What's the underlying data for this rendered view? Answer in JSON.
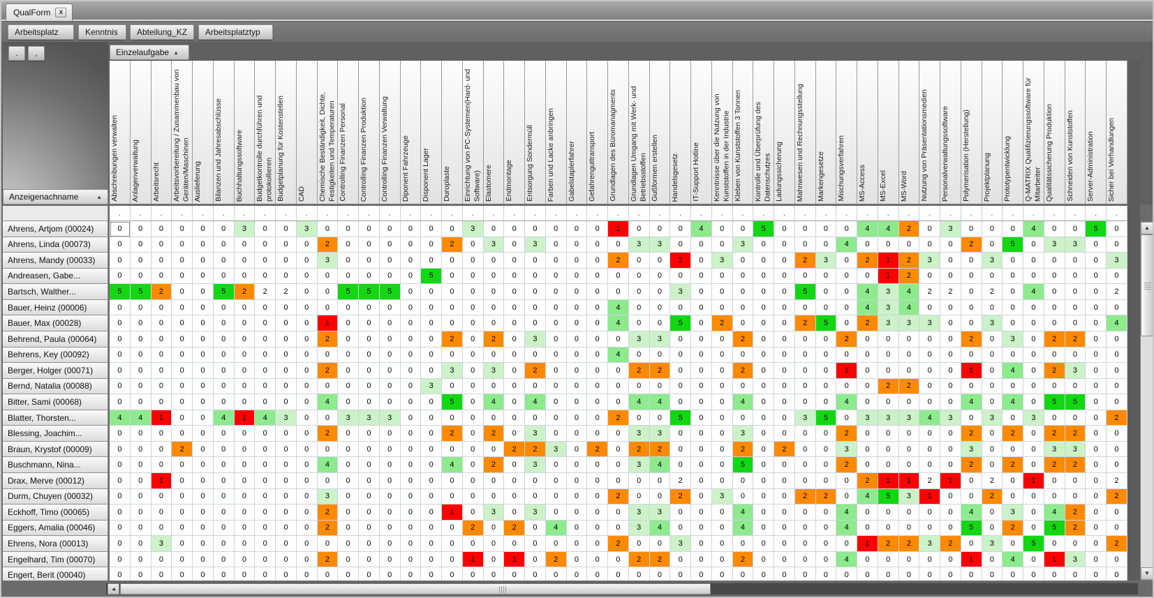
{
  "window": {
    "tab_title": "QualForm",
    "close_label": "x"
  },
  "filter_chips": [
    {
      "label": "Arbeitsplatz"
    },
    {
      "label": "Kenntnis"
    },
    {
      "label": "Abteilung_KZ"
    },
    {
      "label": "Arbeitsplatztyp"
    }
  ],
  "mini_buttons": {
    "dot": ".",
    "comma": ","
  },
  "group_header": {
    "label": "Einzelaufgabe",
    "sort_indicator": "▲"
  },
  "row_header": {
    "label": "Anzeigenachname",
    "sort_indicator": "▲"
  },
  "filter_dot": ".",
  "scrollbars": {
    "up": "▲",
    "down": "▼",
    "left": "◄"
  },
  "value_colors": {
    "0": "#ffffff",
    "1": "#fe0000",
    "2": "#ff8a00",
    "3": "#ccf2c8",
    "4": "#8deb8d",
    "5": "#12d812"
  },
  "columns": [
    "Abschreibungen verwalten",
    "Anlagenverwaltung",
    "Arbeitsrecht",
    "Arbeitsvorbereitung / Zusammenbau von Geräten/Maschinen",
    "Auslieferung",
    "Bilanzen und Jahresabschlüsse",
    "Buchhaltungssoftware",
    "Budgetkontrolle durchführen und protokollieren",
    "Budgetplanung für Kostenstellen",
    "CAD",
    "Chemische Beständigkeit, Dichte, Festigkeiten und Temperaturen",
    "Controlling Finanzen Personal",
    "Controlling Finanzen Produktion",
    "Controlling Finanzen Verwaltung",
    "Diponent Fahrzeuge",
    "Disponent Lager",
    "Duroplaste",
    "Einrichtung von PC-Systemen(Hard- und Software)",
    "Elastomere",
    "Endmontage",
    "Entsorgung Sondermüll",
    "Farben und Lacke anbringen",
    "Gabelstaplerfahrer",
    "Gefahrenguttransport",
    "Grundlagen des Büromanagments",
    "Grundlagen Umgang mit Werk- und Betriebsstoffen",
    "Gußformen erstellen",
    "Handelsgesetz",
    "IT-Support Hotline",
    "Kenntnisse über die Nutzung von Kunststoffen in der Industrie",
    "Kleben von Kunststoffen 3 Tonnen",
    "Kontrolle und Überprüfung des Datenschutzes",
    "Ladungssicherung",
    "Mahnwesen und Rechnungsstellung",
    "Markengesetze",
    "Mischungsverfahren",
    "MS-Access",
    "MS-Excel",
    "MS-Word",
    "Nutzung von Präsentationsmedien",
    "Personalverwaltungssoftware",
    "Polymerisation (Herstellung)",
    "Projektplanung",
    "Prototypentwicklung",
    "Q-MATRIX Qualifizierungssoftware für Mitarbeiter",
    "Qualitätssicherung Produktion",
    "Schneiden von Kunststoffen",
    "Server-Administration",
    "Sicher bei Verhandlungen"
  ],
  "rows": [
    {
      "name": "Ahrens, Artjom (00024)",
      "values": [
        0,
        0,
        0,
        0,
        0,
        0,
        3,
        0,
        0,
        3,
        0,
        0,
        0,
        0,
        0,
        0,
        0,
        3,
        0,
        0,
        0,
        0,
        0,
        0,
        1,
        0,
        0,
        0,
        4,
        0,
        0,
        5,
        0,
        0,
        0,
        0,
        4,
        4,
        2,
        0,
        3,
        0,
        0,
        0,
        4,
        0,
        0,
        5,
        0
      ],
      "plain": []
    },
    {
      "name": "Ahrens, Linda (00073)",
      "values": [
        0,
        0,
        0,
        0,
        0,
        0,
        0,
        0,
        0,
        0,
        2,
        0,
        0,
        0,
        0,
        0,
        2,
        0,
        3,
        0,
        3,
        0,
        0,
        0,
        0,
        3,
        3,
        0,
        0,
        0,
        3,
        0,
        0,
        0,
        0,
        4,
        0,
        0,
        0,
        0,
        0,
        2,
        0,
        5,
        0,
        3,
        3,
        0,
        0
      ],
      "plain": []
    },
    {
      "name": "Ahrens, Mandy (00033)",
      "values": [
        0,
        0,
        0,
        0,
        0,
        0,
        0,
        0,
        0,
        0,
        3,
        0,
        0,
        0,
        0,
        0,
        0,
        0,
        0,
        0,
        0,
        0,
        0,
        0,
        2,
        0,
        0,
        1,
        0,
        3,
        0,
        0,
        0,
        2,
        3,
        0,
        2,
        1,
        2,
        3,
        0,
        0,
        3,
        0,
        0,
        0,
        0,
        0,
        3
      ],
      "plain": []
    },
    {
      "name": "Andreasen, Gabe...",
      "values": [
        0,
        0,
        0,
        0,
        0,
        0,
        0,
        0,
        0,
        0,
        0,
        0,
        0,
        0,
        0,
        5,
        0,
        0,
        0,
        0,
        0,
        0,
        0,
        0,
        0,
        0,
        0,
        0,
        0,
        0,
        0,
        0,
        0,
        0,
        0,
        0,
        0,
        1,
        2,
        0,
        0,
        0,
        0,
        0,
        0,
        0,
        0,
        0,
        0
      ],
      "plain": []
    },
    {
      "name": "Bartsch, Walther...",
      "values": [
        5,
        5,
        2,
        0,
        0,
        5,
        2,
        2,
        2,
        0,
        0,
        5,
        5,
        5,
        0,
        0,
        0,
        0,
        0,
        0,
        0,
        0,
        0,
        0,
        0,
        0,
        0,
        3,
        0,
        0,
        0,
        0,
        0,
        5,
        0,
        0,
        4,
        3,
        4,
        2,
        2,
        0,
        2,
        0,
        4,
        0,
        0,
        0,
        2
      ],
      "plain": [
        8,
        9,
        40,
        41,
        43,
        49
      ]
    },
    {
      "name": "Bauer, Heinz (00006)",
      "values": [
        0,
        0,
        0,
        0,
        0,
        0,
        0,
        0,
        0,
        0,
        0,
        0,
        0,
        0,
        0,
        0,
        0,
        0,
        0,
        0,
        0,
        0,
        0,
        0,
        4,
        0,
        0,
        0,
        0,
        0,
        0,
        0,
        0,
        0,
        0,
        0,
        4,
        3,
        4,
        0,
        0,
        0,
        0,
        0,
        0,
        0,
        0,
        0,
        0
      ],
      "plain": []
    },
    {
      "name": "Bauer, Max (00028)",
      "values": [
        0,
        0,
        0,
        0,
        0,
        0,
        0,
        0,
        0,
        0,
        1,
        0,
        0,
        0,
        0,
        0,
        0,
        0,
        0,
        0,
        0,
        0,
        0,
        0,
        4,
        0,
        0,
        5,
        0,
        2,
        0,
        0,
        0,
        2,
        5,
        0,
        2,
        3,
        3,
        3,
        0,
        0,
        3,
        0,
        0,
        0,
        0,
        0,
        4
      ],
      "plain": []
    },
    {
      "name": "Behrend, Paula (00064)",
      "values": [
        0,
        0,
        0,
        0,
        0,
        0,
        0,
        0,
        0,
        0,
        2,
        0,
        0,
        0,
        0,
        0,
        2,
        0,
        2,
        0,
        3,
        0,
        0,
        0,
        0,
        3,
        3,
        0,
        0,
        0,
        2,
        0,
        0,
        0,
        0,
        2,
        0,
        0,
        0,
        0,
        0,
        2,
        0,
        3,
        0,
        2,
        2,
        0,
        0
      ],
      "plain": []
    },
    {
      "name": "Behrens, Key (00092)",
      "values": [
        0,
        0,
        0,
        0,
        0,
        0,
        0,
        0,
        0,
        0,
        0,
        0,
        0,
        0,
        0,
        0,
        0,
        0,
        0,
        0,
        0,
        0,
        0,
        0,
        4,
        0,
        0,
        0,
        0,
        0,
        0,
        0,
        0,
        0,
        0,
        0,
        0,
        0,
        0,
        0,
        0,
        0,
        0,
        0,
        0,
        0,
        0,
        0,
        0
      ],
      "plain": []
    },
    {
      "name": "Berger, Holger (00071)",
      "values": [
        0,
        0,
        0,
        0,
        0,
        0,
        0,
        0,
        0,
        0,
        2,
        0,
        0,
        0,
        0,
        0,
        3,
        0,
        3,
        0,
        2,
        0,
        0,
        0,
        0,
        2,
        2,
        0,
        0,
        0,
        2,
        0,
        0,
        0,
        0,
        1,
        0,
        0,
        0,
        0,
        0,
        1,
        0,
        4,
        0,
        2,
        3,
        0,
        0
      ],
      "plain": []
    },
    {
      "name": "Bernd, Natalia (00088)",
      "values": [
        0,
        0,
        0,
        0,
        0,
        0,
        0,
        0,
        0,
        0,
        0,
        0,
        0,
        0,
        0,
        3,
        0,
        0,
        0,
        0,
        0,
        0,
        0,
        0,
        0,
        0,
        0,
        0,
        0,
        0,
        0,
        0,
        0,
        0,
        0,
        0,
        0,
        2,
        2,
        0,
        0,
        0,
        0,
        0,
        0,
        0,
        0,
        0,
        0
      ],
      "plain": []
    },
    {
      "name": "Bitter, Sami (00068)",
      "values": [
        0,
        0,
        0,
        0,
        0,
        0,
        0,
        0,
        0,
        0,
        4,
        0,
        0,
        0,
        0,
        0,
        5,
        0,
        4,
        0,
        4,
        0,
        0,
        0,
        0,
        4,
        4,
        0,
        0,
        0,
        4,
        0,
        0,
        0,
        0,
        4,
        0,
        0,
        0,
        0,
        0,
        4,
        0,
        4,
        0,
        5,
        5,
        0,
        0
      ],
      "plain": []
    },
    {
      "name": "Blatter, Thorsten...",
      "values": [
        4,
        4,
        1,
        0,
        0,
        4,
        1,
        4,
        3,
        0,
        0,
        3,
        3,
        3,
        0,
        0,
        0,
        0,
        0,
        0,
        0,
        0,
        0,
        0,
        2,
        0,
        0,
        5,
        0,
        0,
        0,
        0,
        0,
        3,
        5,
        0,
        3,
        3,
        3,
        4,
        3,
        0,
        3,
        0,
        3,
        0,
        0,
        0,
        2
      ],
      "plain": []
    },
    {
      "name": "Blessing, Joachim...",
      "values": [
        0,
        0,
        0,
        0,
        0,
        0,
        0,
        0,
        0,
        0,
        2,
        0,
        0,
        0,
        0,
        0,
        2,
        0,
        2,
        0,
        3,
        0,
        0,
        0,
        0,
        3,
        3,
        0,
        0,
        0,
        3,
        0,
        0,
        0,
        0,
        2,
        0,
        0,
        0,
        0,
        0,
        2,
        0,
        2,
        0,
        2,
        2,
        0,
        0
      ],
      "plain": []
    },
    {
      "name": "Braun, Krystof (00009)",
      "values": [
        0,
        0,
        0,
        2,
        0,
        0,
        0,
        0,
        0,
        0,
        0,
        0,
        0,
        0,
        0,
        0,
        0,
        0,
        0,
        2,
        2,
        3,
        0,
        2,
        0,
        2,
        2,
        0,
        0,
        0,
        2,
        0,
        2,
        0,
        0,
        3,
        0,
        0,
        0,
        0,
        0,
        3,
        0,
        0,
        0,
        3,
        3,
        0,
        0
      ],
      "plain": []
    },
    {
      "name": "Buschmann, Nina...",
      "values": [
        0,
        0,
        0,
        0,
        0,
        0,
        0,
        0,
        0,
        0,
        4,
        0,
        0,
        0,
        0,
        0,
        4,
        0,
        2,
        0,
        3,
        0,
        0,
        0,
        0,
        3,
        4,
        0,
        0,
        0,
        5,
        0,
        0,
        0,
        0,
        2,
        0,
        0,
        0,
        0,
        0,
        2,
        0,
        2,
        0,
        2,
        2,
        0,
        0
      ],
      "plain": []
    },
    {
      "name": "Drax, Merve (00012)",
      "values": [
        0,
        0,
        1,
        0,
        0,
        0,
        0,
        0,
        0,
        0,
        0,
        0,
        0,
        0,
        0,
        0,
        0,
        0,
        0,
        0,
        0,
        0,
        0,
        0,
        0,
        0,
        0,
        2,
        0,
        0,
        0,
        0,
        0,
        0,
        0,
        0,
        2,
        1,
        1,
        2,
        1,
        0,
        2,
        0,
        1,
        0,
        0,
        0,
        2
      ],
      "plain": [
        28,
        40,
        43,
        49
      ]
    },
    {
      "name": "Durm, Chuyen (00032)",
      "values": [
        0,
        0,
        0,
        0,
        0,
        0,
        0,
        0,
        0,
        0,
        3,
        0,
        0,
        0,
        0,
        0,
        0,
        0,
        0,
        0,
        0,
        0,
        0,
        0,
        2,
        0,
        0,
        2,
        0,
        3,
        0,
        0,
        0,
        2,
        2,
        0,
        4,
        5,
        3,
        1,
        0,
        0,
        2,
        0,
        0,
        0,
        0,
        0,
        2
      ],
      "plain": []
    },
    {
      "name": "Eckhoff, Timo (00065)",
      "values": [
        0,
        0,
        0,
        0,
        0,
        0,
        0,
        0,
        0,
        0,
        2,
        0,
        0,
        0,
        0,
        0,
        1,
        0,
        3,
        0,
        3,
        0,
        0,
        0,
        0,
        3,
        3,
        0,
        0,
        0,
        4,
        0,
        0,
        0,
        0,
        4,
        0,
        0,
        0,
        0,
        0,
        4,
        0,
        3,
        0,
        4,
        2,
        0,
        0
      ],
      "plain": []
    },
    {
      "name": "Eggers, Amalia (00046)",
      "values": [
        0,
        0,
        0,
        0,
        0,
        0,
        0,
        0,
        0,
        0,
        2,
        0,
        0,
        0,
        0,
        0,
        0,
        2,
        0,
        2,
        0,
        4,
        0,
        0,
        0,
        3,
        4,
        0,
        0,
        0,
        4,
        0,
        0,
        0,
        0,
        4,
        0,
        0,
        0,
        0,
        0,
        5,
        0,
        2,
        0,
        5,
        2,
        0,
        0
      ],
      "plain": []
    },
    {
      "name": "Ehrens, Nora (00013)",
      "values": [
        0,
        0,
        3,
        0,
        0,
        0,
        0,
        0,
        0,
        0,
        0,
        0,
        0,
        0,
        0,
        0,
        0,
        0,
        0,
        0,
        0,
        0,
        0,
        0,
        2,
        0,
        0,
        3,
        0,
        0,
        0,
        0,
        0,
        0,
        0,
        0,
        1,
        2,
        2,
        3,
        2,
        0,
        3,
        0,
        5,
        0,
        0,
        0,
        2
      ],
      "plain": []
    },
    {
      "name": "Engelhard, Tim (00070)",
      "values": [
        0,
        0,
        0,
        0,
        0,
        0,
        0,
        0,
        0,
        0,
        2,
        0,
        0,
        0,
        0,
        0,
        0,
        1,
        0,
        1,
        0,
        2,
        0,
        0,
        0,
        2,
        2,
        0,
        0,
        0,
        2,
        0,
        0,
        0,
        0,
        4,
        0,
        0,
        0,
        0,
        0,
        1,
        0,
        4,
        0,
        1,
        3,
        0,
        0
      ],
      "plain": []
    },
    {
      "name": "Engert, Berit (00040)",
      "values": [
        0,
        0,
        0,
        0,
        0,
        0,
        0,
        0,
        0,
        0,
        0,
        0,
        0,
        0,
        0,
        0,
        0,
        0,
        0,
        0,
        0,
        0,
        0,
        0,
        0,
        0,
        0,
        0,
        0,
        0,
        0,
        0,
        0,
        0,
        0,
        0,
        0,
        0,
        0,
        0,
        0,
        0,
        0,
        0,
        0,
        0,
        0,
        0,
        0
      ],
      "plain": []
    }
  ]
}
